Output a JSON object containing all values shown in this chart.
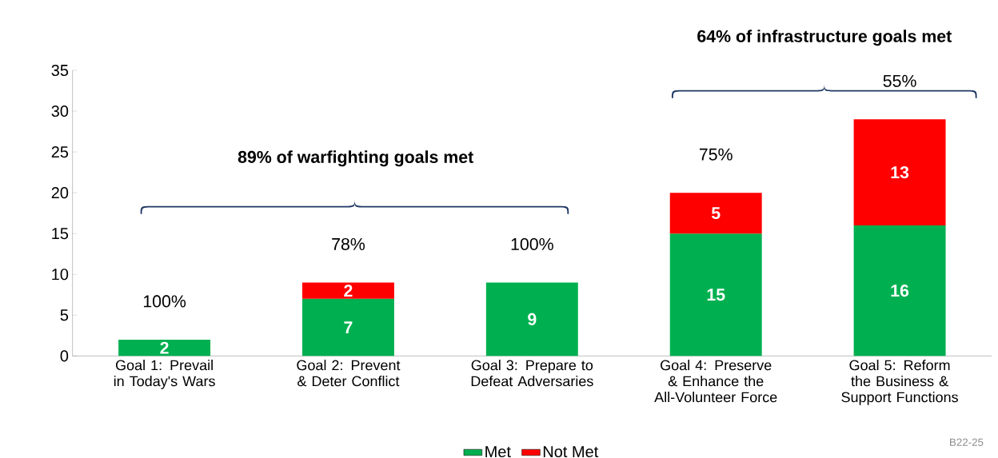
{
  "chart_data": {
    "type": "bar",
    "stacked": true,
    "categories": [
      "Goal 1: Prevail in Today's Wars",
      "Goal 2: Prevent & Deter Conflict",
      "Goal 3: Prepare to Defeat Adversaries",
      "Goal 4: Preserve & Enhance the All-Volunteer Force",
      "Goal 5: Reform the Business & Support Functions"
    ],
    "series": [
      {
        "name": "Met",
        "color": "#00b050",
        "values": [
          2,
          7,
          9,
          15,
          16
        ],
        "value_labels": [
          "2",
          "7",
          "9",
          "15",
          "16"
        ]
      },
      {
        "name": "Not Met",
        "color": "#ff0000",
        "values": [
          null,
          2,
          null,
          5,
          13
        ],
        "value_labels": [
          null,
          "2",
          null,
          "5",
          "13"
        ]
      }
    ],
    "ylim": [
      0,
      35
    ],
    "yticks": [
      0,
      5,
      10,
      15,
      20,
      25,
      30,
      35
    ],
    "legend": "bottom",
    "annotations": [
      "100%",
      "78%",
      "100%",
      "75%",
      "55%",
      "89% of warfighting goals met",
      "64% of infrastructure goals met",
      "B22-25"
    ]
  }
}
